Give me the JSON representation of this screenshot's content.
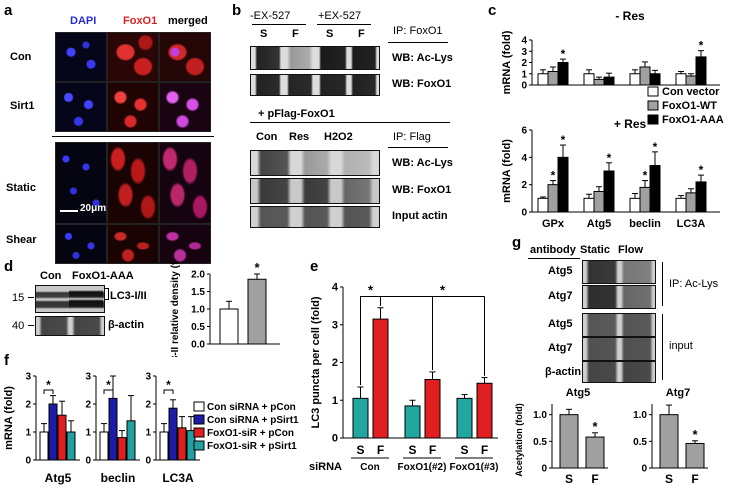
{
  "panel_letters": {
    "a": "a",
    "b": "b",
    "c": "c",
    "d": "d",
    "e": "e",
    "f": "f",
    "g": "g"
  },
  "panel_a": {
    "columns": [
      "DAPI",
      "FoxO1",
      "merged"
    ],
    "column_colors": [
      "#2b2bd8",
      "#d82020",
      "#000000"
    ],
    "rows": [
      "Con",
      "Sirt1",
      "Static",
      "Shear"
    ],
    "scale_bar": "20μm"
  },
  "panel_b": {
    "top": {
      "groups": [
        "-EX-527",
        "+EX-527"
      ],
      "lanes": [
        "S",
        "F",
        "S",
        "F"
      ],
      "ip_label": "IP: FoxO1",
      "wb_labels": [
        "WB: Ac-Lys",
        "WB: FoxO1"
      ]
    },
    "bottom": {
      "title": "+ pFlag-FoxO1",
      "lanes": [
        "Con",
        "Res",
        "H2O2"
      ],
      "ip_label": "IP: Flag",
      "wb_labels": [
        "WB: Ac-Lys",
        "WB: FoxO1",
        "Input actin"
      ]
    }
  },
  "panel_c": {
    "ylabel": "mRNA (fold)",
    "legend": [
      "Con vector",
      "FoxO1-WT",
      "FoxO1-AAA"
    ],
    "star": "*"
  },
  "panel_d": {
    "lanes": [
      "Con",
      "FoxO1-AAA"
    ],
    "mw": [
      "15",
      "40"
    ],
    "band_labels": [
      "LC3-I/II",
      "β-actin"
    ],
    "ylabel": "LC3-II relative density (fold)",
    "star": "*"
  },
  "panel_e": {
    "ylabel": "LC3 puncta per cell (fold)",
    "row_label": "siRNA",
    "groups": [
      "Con",
      "FoxO1(#2)",
      "FoxO1(#3)"
    ],
    "lanes": [
      "S",
      "F"
    ],
    "star": "*"
  },
  "panel_f": {
    "ylabel": "mRNA (fold)",
    "legend": [
      "Con siRNA + pCon",
      "Con siRNA + pSirt1",
      "FoxO1-siR + pCon",
      "FoxO1-siR + pSirt1"
    ],
    "star": "*"
  },
  "panel_g": {
    "header": [
      "antibody",
      "Static",
      "Flow"
    ],
    "bands": [
      "Atg5",
      "Atg7",
      "Atg5",
      "Atg7",
      "β-actin"
    ],
    "ip_label": "IP: Ac-Lys",
    "input_label": "input",
    "ylabel": "Acetylation (fold)",
    "star": "*"
  },
  "chart_data": [
    {
      "id": "c_minus_res",
      "type": "bar",
      "title": "- Res",
      "categories": [
        "GPx",
        "Atg5",
        "beclin",
        "LC3A"
      ],
      "series": [
        {
          "name": "Con vector",
          "values": [
            1.0,
            1.0,
            1.0,
            1.0
          ],
          "errors": [
            0.35,
            0.35,
            0.35,
            0.2
          ]
        },
        {
          "name": "FoxO1-WT",
          "values": [
            1.2,
            0.5,
            1.6,
            0.8
          ],
          "errors": [
            0.4,
            0.2,
            0.45,
            0.2
          ]
        },
        {
          "name": "FoxO1-AAA",
          "values": [
            2.0,
            0.7,
            1.0,
            2.5
          ],
          "errors": [
            0.3,
            0.35,
            0.3,
            0.55
          ]
        }
      ],
      "stars": [
        [
          0,
          2
        ],
        [
          3,
          2
        ]
      ],
      "ylim": [
        0,
        4
      ],
      "yticks": [
        0,
        1,
        2,
        3,
        4
      ],
      "colors": [
        "#ffffff",
        "#a0a0a0",
        "#000000"
      ]
    },
    {
      "id": "c_plus_res",
      "type": "bar",
      "title": "+ Res",
      "categories": [
        "GPx",
        "Atg5",
        "beclin",
        "LC3A"
      ],
      "series": [
        {
          "name": "Con vector",
          "values": [
            1.0,
            1.0,
            1.0,
            1.0
          ],
          "errors": [
            0.1,
            0.3,
            0.35,
            0.2
          ]
        },
        {
          "name": "FoxO1-WT",
          "values": [
            2.0,
            1.5,
            1.8,
            1.4
          ],
          "errors": [
            0.3,
            0.35,
            0.5,
            0.3
          ]
        },
        {
          "name": "FoxO1-AAA",
          "values": [
            4.0,
            3.0,
            3.4,
            2.2
          ],
          "errors": [
            0.9,
            0.6,
            1.0,
            0.5
          ]
        }
      ],
      "stars": [
        [
          0,
          1
        ],
        [
          0,
          2
        ],
        [
          1,
          2
        ],
        [
          2,
          1
        ],
        [
          2,
          2
        ],
        [
          3,
          2
        ]
      ],
      "ylim": [
        0,
        6
      ],
      "yticks": [
        0,
        2,
        4,
        6
      ],
      "colors": [
        "#ffffff",
        "#a0a0a0",
        "#000000"
      ]
    },
    {
      "id": "d_density",
      "type": "bar",
      "categories": [
        "Con",
        "FoxO1-AAA"
      ],
      "values": [
        1.0,
        1.85
      ],
      "errors": [
        0.22,
        0.15
      ],
      "colors": [
        "#ffffff",
        "#a0a0a0"
      ],
      "stars": [
        1
      ],
      "ylim": [
        0,
        2.0
      ],
      "yticks": [
        0,
        0.5,
        1.0,
        1.5,
        2.0
      ]
    },
    {
      "id": "e_puncta",
      "type": "bar",
      "categories": [
        "S",
        "F",
        "S",
        "F",
        "S",
        "F"
      ],
      "values": [
        1.05,
        3.15,
        0.85,
        1.55,
        1.05,
        1.45
      ],
      "errors": [
        0.3,
        0.3,
        0.15,
        0.2,
        0.1,
        0.15
      ],
      "colors": [
        "#22a6a0",
        "#e02020",
        "#22a6a0",
        "#e02020",
        "#22a6a0",
        "#e02020"
      ],
      "ylim": [
        0,
        4
      ],
      "yticks": [
        0,
        1,
        2,
        3,
        4
      ]
    },
    {
      "id": "f_mrna",
      "type": "bar",
      "categories": [
        "Atg5",
        "beclin",
        "LC3A"
      ],
      "series": [
        {
          "name": "Con siRNA + pCon",
          "values": [
            1.0,
            1.0,
            1.0
          ],
          "errors": [
            0.3,
            0.3,
            0.3
          ]
        },
        {
          "name": "Con siRNA + pSirt1",
          "values": [
            2.0,
            2.2,
            1.85
          ],
          "errors": [
            0.3,
            0.8,
            0.3
          ]
        },
        {
          "name": "FoxO1-siR + pCon",
          "values": [
            1.6,
            0.8,
            1.15
          ],
          "errors": [
            0.5,
            0.25,
            0.4
          ]
        },
        {
          "name": "FoxO1-siR + pSirt1",
          "values": [
            1.0,
            1.4,
            1.05
          ],
          "errors": [
            0.4,
            0.9,
            0.5
          ]
        }
      ],
      "stars": [
        [
          0,
          1
        ],
        [
          1,
          1
        ],
        [
          2,
          1
        ]
      ],
      "ylim": [
        0,
        3
      ],
      "yticks": [
        0,
        1,
        2,
        3
      ],
      "colors": [
        "#ffffff",
        "#1c1ca8",
        "#e02020",
        "#22a0a0"
      ]
    },
    {
      "id": "g_atg5",
      "type": "bar",
      "title": "Atg5",
      "categories": [
        "S",
        "F"
      ],
      "values": [
        1.0,
        0.58
      ],
      "errors": [
        0.1,
        0.08
      ],
      "colors": [
        "#a0a0a0",
        "#a0a0a0"
      ],
      "stars": [
        1
      ],
      "ylim": [
        0,
        1.2
      ],
      "yticks": [
        0,
        0.5,
        1.0
      ]
    },
    {
      "id": "g_atg7",
      "type": "bar",
      "title": "Atg7",
      "categories": [
        "S",
        "F"
      ],
      "values": [
        1.0,
        0.46
      ],
      "errors": [
        0.18,
        0.05
      ],
      "colors": [
        "#a0a0a0",
        "#a0a0a0"
      ],
      "stars": [
        1
      ],
      "ylim": [
        0,
        1.2
      ],
      "yticks": [
        0,
        0.5,
        1.0
      ]
    }
  ]
}
